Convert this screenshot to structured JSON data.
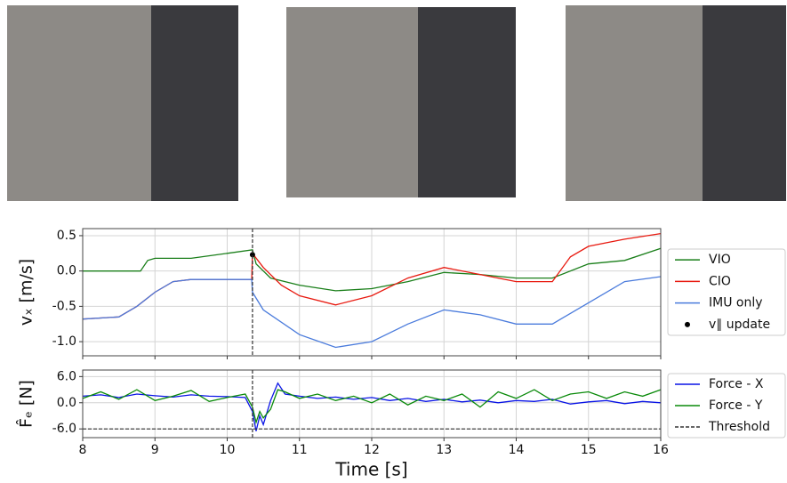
{
  "chart_data": [
    {
      "type": "line",
      "ylabel": "vₓ [m/s]",
      "xlim": [
        8,
        16
      ],
      "xticks": [
        8,
        9,
        10,
        11,
        12,
        13,
        14,
        15,
        16
      ],
      "show_xtick_labels": false,
      "ylim": [
        -1.2,
        0.6
      ],
      "yticks": [
        0.5,
        {
          "value": 0,
          "label": "0.0"
        },
        -0.5,
        {
          "value": -1,
          "label": "-1.0"
        }
      ],
      "grid": true,
      "vline": 10.35,
      "legend": "outside right",
      "series": [
        {
          "name": "VIO",
          "color": "#1a7f1a",
          "style": "solid",
          "x": [
            8,
            8.8,
            8.9,
            9.0,
            9.5,
            10.0,
            10.35,
            10.4,
            10.6,
            11,
            11.5,
            12,
            12.5,
            13,
            13.5,
            14,
            14.5,
            15,
            15.5,
            16
          ],
          "values": [
            0.0,
            0.0,
            0.15,
            0.18,
            0.18,
            0.25,
            0.3,
            0.1,
            -0.1,
            -0.2,
            -0.28,
            -0.25,
            -0.15,
            -0.02,
            -0.05,
            -0.1,
            -0.1,
            0.1,
            0.15,
            0.32
          ]
        },
        {
          "name": "CIO",
          "color": "#e8190f",
          "style": "solid",
          "x": [
            8,
            8.5,
            8.75,
            9,
            9.25,
            9.5,
            10,
            10.34,
            10.35,
            10.5,
            10.75,
            11,
            11.5,
            12,
            12.5,
            13,
            13.5,
            14,
            14.5,
            14.75,
            15,
            15.5,
            16
          ],
          "values": [
            -0.68,
            -0.65,
            -0.5,
            -0.3,
            -0.15,
            -0.12,
            -0.12,
            -0.12,
            0.25,
            0.05,
            -0.2,
            -0.35,
            -0.48,
            -0.35,
            -0.1,
            0.05,
            -0.05,
            -0.15,
            -0.15,
            0.2,
            0.35,
            0.45,
            0.53
          ]
        },
        {
          "name": "IMU only",
          "color": "#4a7bdc",
          "style": "solid",
          "x": [
            8,
            8.5,
            8.75,
            9,
            9.25,
            9.5,
            10,
            10.34,
            10.35,
            10.5,
            11,
            11.5,
            12,
            12.5,
            13,
            13.5,
            14,
            14.5,
            15,
            15.5,
            16
          ],
          "values": [
            -0.68,
            -0.65,
            -0.5,
            -0.3,
            -0.15,
            -0.12,
            -0.12,
            -0.12,
            -0.3,
            -0.55,
            -0.9,
            -1.08,
            -1.0,
            -0.75,
            -0.55,
            -0.62,
            -0.75,
            -0.75,
            -0.45,
            -0.15,
            -0.08
          ]
        },
        {
          "name": "v∥ update",
          "color": "#000000",
          "style": "marker",
          "x": [
            10.35
          ],
          "values": [
            0.23
          ]
        }
      ]
    },
    {
      "type": "line",
      "ylabel": "F̂ₑ [N]",
      "xlabel": "Time [s]",
      "xlim": [
        8,
        16
      ],
      "xticks": [
        8,
        9,
        10,
        11,
        12,
        13,
        14,
        15,
        16
      ],
      "show_xtick_labels": true,
      "ylim": [
        -8,
        7.5
      ],
      "yticks": [
        {
          "value": 6,
          "label": "6.0"
        },
        {
          "value": 0,
          "label": "0.0"
        },
        {
          "value": -6,
          "label": "-6.0"
        }
      ],
      "grid": true,
      "vline": 10.35,
      "legend": "outside right",
      "series": [
        {
          "name": "Force - X",
          "color": "#0a14e6",
          "style": "solid",
          "x": [
            8,
            8.25,
            8.5,
            8.75,
            9,
            9.25,
            9.5,
            9.75,
            10,
            10.25,
            10.35,
            10.4,
            10.45,
            10.5,
            10.6,
            10.7,
            10.8,
            11,
            11.25,
            11.5,
            11.75,
            12,
            12.25,
            12.5,
            12.75,
            13,
            13.25,
            13.5,
            13.75,
            14,
            14.25,
            14.5,
            14.75,
            15,
            15.25,
            15.5,
            15.75,
            16
          ],
          "values": [
            1.5,
            1.8,
            1.2,
            2.0,
            1.6,
            1.3,
            1.8,
            1.5,
            1.4,
            1.2,
            -2.0,
            -6.5,
            -3.0,
            -5.0,
            0.5,
            4.5,
            2.0,
            1.5,
            1.0,
            1.3,
            0.8,
            1.2,
            0.5,
            1.0,
            0.3,
            0.8,
            0.2,
            0.6,
            0.0,
            0.5,
            0.3,
            0.8,
            -0.3,
            0.2,
            0.5,
            -0.2,
            0.3,
            0.0
          ]
        },
        {
          "name": "Force - Y",
          "color": "#0a8a0a",
          "style": "solid",
          "x": [
            8,
            8.25,
            8.5,
            8.75,
            9,
            9.25,
            9.5,
            9.75,
            10,
            10.25,
            10.35,
            10.4,
            10.45,
            10.5,
            10.6,
            10.7,
            10.8,
            11,
            11.25,
            11.5,
            11.75,
            12,
            12.25,
            12.5,
            12.75,
            13,
            13.25,
            13.5,
            13.75,
            14,
            14.25,
            14.5,
            14.75,
            15,
            15.25,
            15.5,
            15.75,
            16
          ],
          "values": [
            1.0,
            2.5,
            0.8,
            3.0,
            0.5,
            1.5,
            2.8,
            0.3,
            1.2,
            2.0,
            -1.0,
            -4.5,
            -2.0,
            -3.5,
            -1.5,
            3.0,
            2.5,
            1.0,
            2.0,
            0.5,
            1.5,
            0.0,
            2.0,
            -0.5,
            1.5,
            0.5,
            2.0,
            -1.0,
            2.5,
            1.0,
            3.0,
            0.5,
            2.0,
            2.5,
            1.0,
            2.5,
            1.5,
            3.0
          ]
        },
        {
          "name": "Threshold",
          "color": "#333333",
          "style": "dashed",
          "x": [
            8,
            16
          ],
          "values": [
            -6,
            -6
          ]
        }
      ]
    }
  ]
}
